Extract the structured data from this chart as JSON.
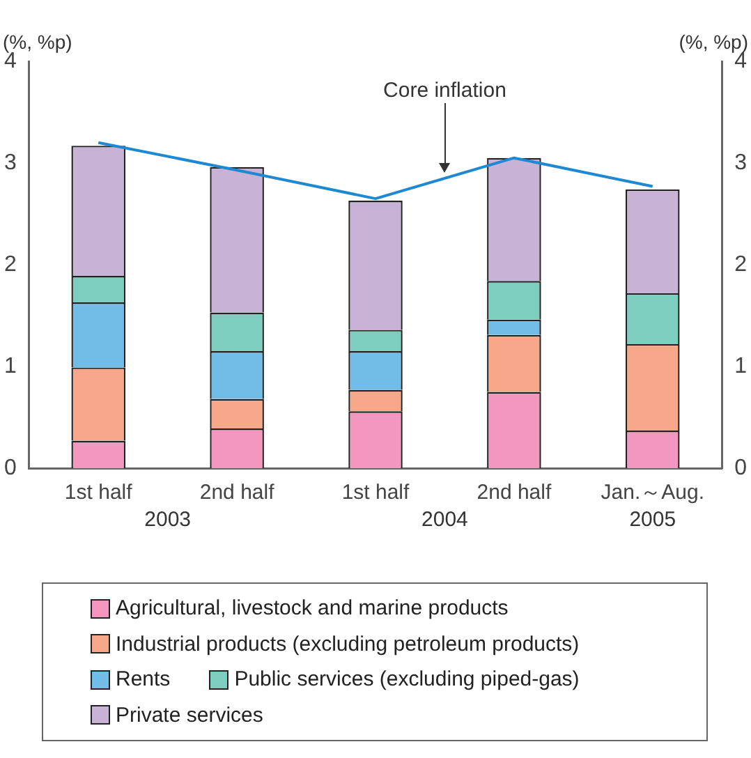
{
  "chart_data": {
    "type": "bar",
    "stacked": true,
    "ylabel": "(%, %p)",
    "y2label": "(%, %p)",
    "categories": [
      "1st half",
      "2nd half",
      "1st half",
      "2nd half",
      "Jan.～Aug."
    ],
    "annotations": [
      "2003",
      "2004",
      "2005"
    ],
    "series": [
      {
        "name": "Agricultural, livestock and marine products",
        "color": "#f397c0",
        "values": [
          0.27,
          0.39,
          0.56,
          0.75,
          0.37
        ]
      },
      {
        "name": "Industrial products (excluding petroleum products)",
        "color": "#f7a88a",
        "values": [
          0.72,
          0.29,
          0.21,
          0.56,
          0.85
        ]
      },
      {
        "name": "Rents",
        "color": "#72bde8",
        "values": [
          0.64,
          0.47,
          0.38,
          0.15,
          0
        ]
      },
      {
        "name": "Public services (excluding piped-gas)",
        "color": "#7ecebf",
        "values": [
          0.26,
          0.38,
          0.21,
          0.38,
          0.5
        ]
      },
      {
        "name": "Private services",
        "color": "#c8b2d6",
        "values": [
          1.28,
          1.43,
          1.27,
          1.21,
          1.02
        ]
      },
      {
        "name": "Core inflation",
        "type": "line",
        "color": "#1e88d2",
        "values": [
          3.2,
          2.93,
          2.65,
          3.05,
          2.77
        ]
      }
    ],
    "ylim": [
      0,
      4
    ],
    "yticks": [
      0,
      1,
      2,
      3,
      4
    ],
    "y2lim": [
      0,
      4
    ],
    "y2ticks": [
      0,
      1,
      2,
      3,
      4
    ],
    "grid": false,
    "legend": "bottom",
    "marker": "none"
  }
}
